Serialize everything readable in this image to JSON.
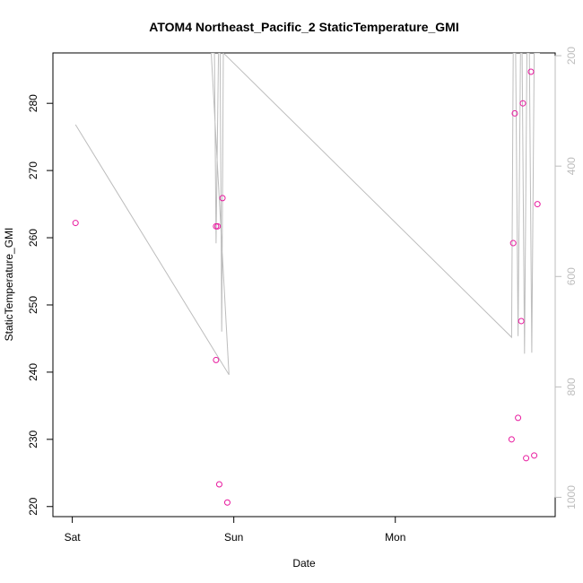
{
  "chart_data": {
    "type": "scatter",
    "title": "ATOM4 Northeast_Pacific_2 StaticTemperature_GMI",
    "xlabel": "Date",
    "ylabel": "StaticTemperature_GMI",
    "x_ticks": [
      "Sat",
      "Sun",
      "Mon"
    ],
    "x_tick_days": [
      0,
      1,
      2
    ],
    "xlim": [
      -0.12,
      2.99
    ],
    "ylim": [
      218.5,
      287.5
    ],
    "y_ticks": [
      220,
      230,
      240,
      250,
      260,
      270,
      280
    ],
    "y2_ticks": [
      200,
      400,
      600,
      800,
      1000
    ],
    "y2lim": [
      1035,
      195
    ],
    "grid": false,
    "colors": {
      "points": "#e8199e",
      "line": "#bdbdbd",
      "right_axis": "#bdbdbd"
    },
    "points": [
      {
        "x": 0.02,
        "y": 262.2
      },
      {
        "x": 0.89,
        "y": 241.8
      },
      {
        "x": 0.89,
        "y": 261.7
      },
      {
        "x": 0.9,
        "y": 261.7
      },
      {
        "x": 0.91,
        "y": 223.3
      },
      {
        "x": 0.93,
        "y": 265.9
      },
      {
        "x": 0.96,
        "y": 220.6
      },
      {
        "x": 2.72,
        "y": 230.0
      },
      {
        "x": 2.73,
        "y": 259.2
      },
      {
        "x": 2.74,
        "y": 278.5
      },
      {
        "x": 2.76,
        "y": 233.2
      },
      {
        "x": 2.78,
        "y": 247.6
      },
      {
        "x": 2.79,
        "y": 280.0
      },
      {
        "x": 2.81,
        "y": 227.2
      },
      {
        "x": 2.84,
        "y": 284.7
      },
      {
        "x": 2.86,
        "y": 227.6
      },
      {
        "x": 2.88,
        "y": 265.0
      }
    ],
    "pressure_line": {
      "axis": "right",
      "x": [
        0.02,
        0.97,
        0.86,
        0.88,
        0.89,
        0.905,
        0.915,
        0.925,
        0.935,
        2.72,
        2.73,
        2.745,
        2.76,
        2.775,
        2.785,
        2.8,
        2.815,
        2.83,
        2.845,
        2.86,
        2.875,
        2.895
      ],
      "y": [
        325,
        778,
        195,
        195,
        540,
        195,
        195,
        700,
        195,
        710,
        195,
        195,
        708,
        195,
        195,
        740,
        195,
        195,
        738,
        195,
        195,
        195
      ]
    }
  }
}
